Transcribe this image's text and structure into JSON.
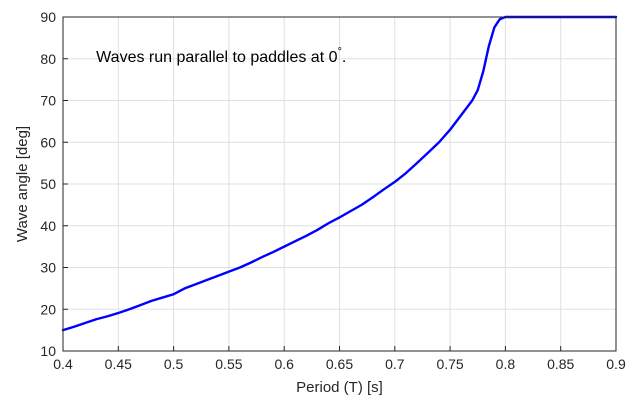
{
  "chart_data": {
    "type": "line",
    "title": "",
    "xlabel": "Period (T)  [s]",
    "ylabel": "Wave angle [deg]",
    "xlim": [
      0.4,
      0.9
    ],
    "ylim": [
      10,
      90
    ],
    "xticks": [
      0.4,
      0.45,
      0.5,
      0.55,
      0.6,
      0.65,
      0.7,
      0.75,
      0.8,
      0.85,
      0.9
    ],
    "xtick_labels": [
      "0.4",
      "0.45",
      "0.5",
      "0.55",
      "0.6",
      "0.65",
      "0.7",
      "0.75",
      "0.8",
      "0.85",
      "0.9"
    ],
    "yticks": [
      10,
      20,
      30,
      40,
      50,
      60,
      70,
      80,
      90
    ],
    "ytick_labels": [
      "10",
      "20",
      "30",
      "40",
      "50",
      "60",
      "70",
      "80",
      "90"
    ],
    "grid": true,
    "annotation": {
      "text": "Waves run parallel to paddles at 0",
      "superscript": "°",
      "suffix": ".",
      "x": 0.43,
      "y": 80.7
    },
    "series": [
      {
        "color": "#0000ff",
        "x": [
          0.4,
          0.41,
          0.42,
          0.43,
          0.44,
          0.45,
          0.46,
          0.47,
          0.48,
          0.49,
          0.5,
          0.51,
          0.52,
          0.53,
          0.54,
          0.55,
          0.56,
          0.57,
          0.58,
          0.59,
          0.6,
          0.61,
          0.62,
          0.63,
          0.64,
          0.65,
          0.66,
          0.67,
          0.68,
          0.69,
          0.7,
          0.71,
          0.72,
          0.73,
          0.74,
          0.75,
          0.76,
          0.77,
          0.775,
          0.78,
          0.785,
          0.79,
          0.795,
          0.8,
          0.81,
          0.82,
          0.83,
          0.84,
          0.85,
          0.86,
          0.87,
          0.88,
          0.89,
          0.9
        ],
        "y": [
          15.0,
          15.8,
          16.7,
          17.6,
          18.3,
          19.1,
          20.0,
          21.0,
          22.0,
          22.8,
          23.6,
          25.0,
          26.0,
          27.0,
          28.0,
          29.0,
          30.0,
          31.2,
          32.5,
          33.7,
          35.0,
          36.3,
          37.6,
          39.0,
          40.6,
          42.0,
          43.5,
          45.0,
          46.8,
          48.7,
          50.5,
          52.6,
          55.0,
          57.5,
          60.0,
          63.0,
          66.5,
          70.0,
          72.5,
          77.0,
          83.0,
          87.5,
          89.5,
          90.0,
          90.0,
          90.0,
          90.0,
          90.0,
          90.0,
          90.0,
          90.0,
          90.0,
          90.0,
          90.0
        ]
      }
    ]
  }
}
